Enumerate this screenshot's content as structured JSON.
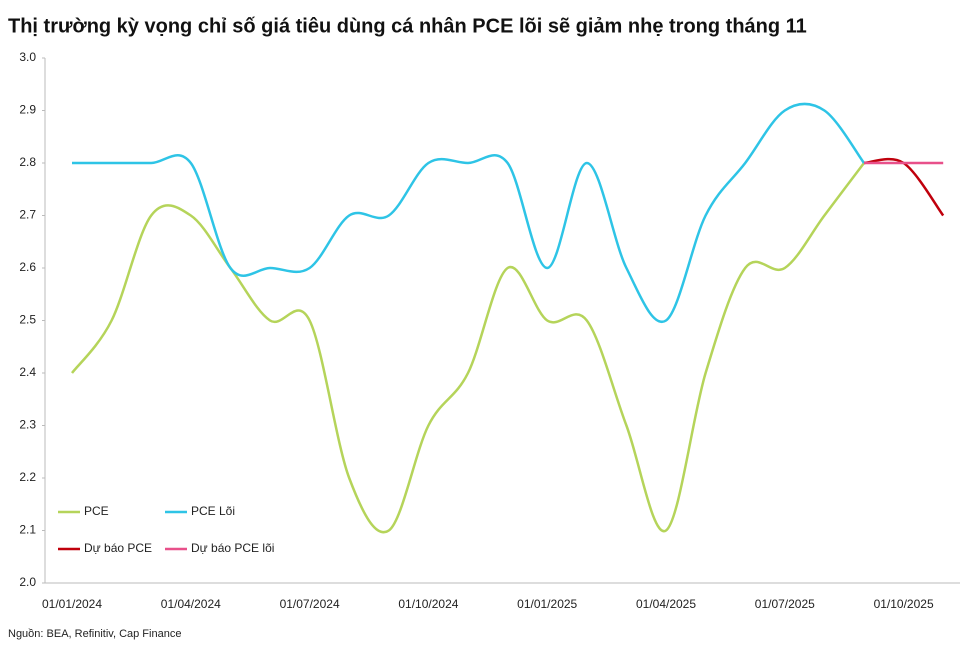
{
  "chart_data": {
    "type": "line",
    "title": "Thị trường kỳ vọng chỉ số giá tiêu dùng cá nhân PCE lõi sẽ giảm nhẹ trong tháng 11",
    "source": "Nguồn: BEA, Refinitiv, Cap Finance",
    "categories": [
      "01/01/2024",
      null,
      null,
      "01/04/2024",
      null,
      null,
      "01/07/2024",
      null,
      null,
      "01/10/2024",
      null,
      null,
      "01/01/2025",
      null,
      null,
      "01/04/2025",
      null,
      null,
      "01/07/2025",
      null,
      null,
      "01/10/2025",
      null
    ],
    "series": [
      {
        "name": "PCE",
        "color": "#b5d45a",
        "values": [
          2.4,
          2.5,
          2.7,
          2.7,
          2.6,
          2.5,
          2.5,
          2.2,
          2.1,
          2.3,
          2.4,
          2.6,
          2.5,
          2.5,
          2.3,
          2.1,
          2.4,
          2.6,
          2.6,
          2.7,
          2.8,
          null,
          null
        ]
      },
      {
        "name": "PCE Lõi",
        "color": "#2ec4e6",
        "values": [
          2.8,
          2.8,
          2.8,
          2.8,
          2.6,
          2.6,
          2.6,
          2.7,
          2.7,
          2.8,
          2.8,
          2.8,
          2.6,
          2.8,
          2.6,
          2.5,
          2.7,
          2.8,
          2.9,
          2.9,
          2.8,
          null,
          null
        ]
      },
      {
        "name": "Dự báo PCE",
        "color": "#c0000c",
        "values": [
          null,
          null,
          null,
          null,
          null,
          null,
          null,
          null,
          null,
          null,
          null,
          null,
          null,
          null,
          null,
          null,
          null,
          null,
          null,
          null,
          2.8,
          2.8,
          2.7
        ]
      },
      {
        "name": "Dự báo PCE lõi",
        "color": "#e8508a",
        "values": [
          null,
          null,
          null,
          null,
          null,
          null,
          null,
          null,
          null,
          null,
          null,
          null,
          null,
          null,
          null,
          null,
          null,
          null,
          null,
          null,
          2.8,
          2.8,
          2.8
        ]
      }
    ],
    "ylim": [
      2.0,
      3.0
    ],
    "yticks": [
      {
        "value": 2.0,
        "label": "2.0"
      },
      2.1,
      2.2,
      2.3,
      2.4,
      2.5,
      2.6,
      2.7,
      2.8,
      2.9,
      {
        "value": 3.0,
        "label": "3.0"
      }
    ],
    "grid": false,
    "legend": "bottom-left"
  }
}
